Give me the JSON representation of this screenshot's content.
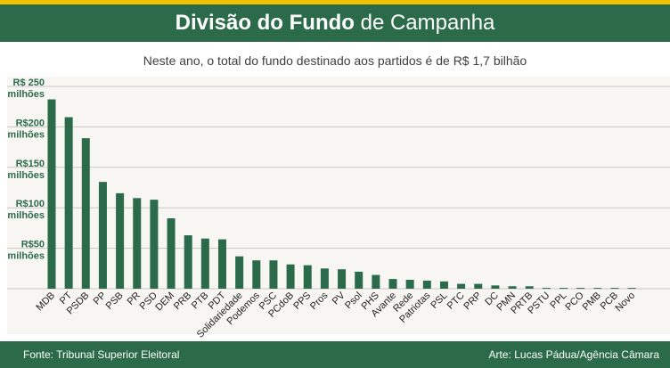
{
  "header": {
    "title_bold": "Divisão do Fundo",
    "title_rest": "de Campanha"
  },
  "subtitle": "Neste ano, o total do fundo destinado aos partidos é de R$ 1,7 bilhão",
  "footer": {
    "source": "Fonte: Tribunal Superior Eleitoral",
    "credit": "Arte: Lucas Pádua/Agência Câmara"
  },
  "colors": {
    "bar": "#2c6b49",
    "header": "#2c6b49",
    "accent_stripe": "#f2c200",
    "plot_bg": "#f7f6f2",
    "grid": "#c8c8c8",
    "axis_label": "#2c6b49"
  },
  "chart_data": {
    "type": "bar",
    "title": "",
    "xlabel": "",
    "ylabel": "",
    "ylim": [
      0,
      250
    ],
    "grid": true,
    "ytick_values": [
      50,
      100,
      150,
      200,
      250
    ],
    "ytick_labels": [
      [
        "R$50",
        "milhões"
      ],
      [
        "R$100",
        "milhões"
      ],
      [
        "R$150",
        "milhões"
      ],
      [
        "R$200",
        "milhões"
      ],
      [
        "R$ 250",
        "milhões"
      ]
    ],
    "categories": [
      "MDB",
      "PT",
      "PSDB",
      "PP",
      "PSB",
      "PR",
      "PSD",
      "DEM",
      "PRB",
      "PTB",
      "PDT",
      "Solidariedade",
      "Podemos",
      "PSC",
      "PCdoB",
      "PPS",
      "Pros",
      "PV",
      "Psol",
      "PHS",
      "Avante",
      "Rede",
      "Patriotas",
      "PSL",
      "PTC",
      "PRP",
      "DC",
      "PMN",
      "PRTB",
      "PSTU",
      "PPL",
      "PCO",
      "PMB",
      "PCB",
      "Novo"
    ],
    "values": [
      234,
      212,
      186,
      132,
      118,
      112,
      110,
      87,
      66,
      62,
      61,
      40,
      35,
      35,
      30,
      29,
      25,
      24,
      21,
      17,
      12,
      11,
      10,
      9,
      6,
      6,
      4,
      3,
      3,
      1,
      1,
      1,
      1,
      1,
      1
    ]
  }
}
